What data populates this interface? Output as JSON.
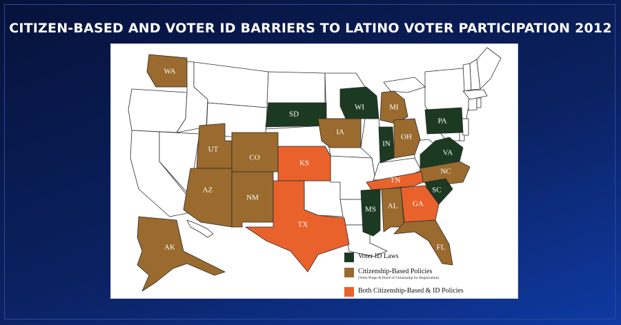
{
  "title": "CITIZEN-BASED AND VOTER ID BARRIERS TO LATINO VOTER PARTICIPATION 2012",
  "colors": {
    "voter_id": "#1c3a22",
    "citizenship": "#9a6a2e",
    "both": "#e9622c",
    "none": "#ffffff"
  },
  "legend": [
    {
      "key": "voter_id",
      "label": "Voter ID Laws",
      "sub": ""
    },
    {
      "key": "citizenship",
      "label": "Citizenship-Based Policies",
      "sub": "(Voter Purge & Proof of Citizenship for Registration)"
    },
    {
      "key": "both",
      "label": "Both Citizenship-Based & ID Policies",
      "sub": ""
    }
  ],
  "states": [
    {
      "abbr": "WA",
      "category": "citizenship"
    },
    {
      "abbr": "UT",
      "category": "citizenship"
    },
    {
      "abbr": "CO",
      "category": "citizenship"
    },
    {
      "abbr": "AZ",
      "category": "citizenship"
    },
    {
      "abbr": "NM",
      "category": "citizenship"
    },
    {
      "abbr": "AK",
      "category": "citizenship"
    },
    {
      "abbr": "IA",
      "category": "citizenship"
    },
    {
      "abbr": "MI",
      "category": "citizenship"
    },
    {
      "abbr": "OH",
      "category": "citizenship"
    },
    {
      "abbr": "NC",
      "category": "citizenship"
    },
    {
      "abbr": "AL",
      "category": "citizenship"
    },
    {
      "abbr": "FL",
      "category": "citizenship"
    },
    {
      "abbr": "SD",
      "category": "voter_id"
    },
    {
      "abbr": "WI",
      "category": "voter_id"
    },
    {
      "abbr": "IN",
      "category": "voter_id"
    },
    {
      "abbr": "PA",
      "category": "voter_id"
    },
    {
      "abbr": "VA",
      "category": "voter_id"
    },
    {
      "abbr": "SC",
      "category": "voter_id"
    },
    {
      "abbr": "MS",
      "category": "voter_id"
    },
    {
      "abbr": "KS",
      "category": "both"
    },
    {
      "abbr": "TX",
      "category": "both"
    },
    {
      "abbr": "TN",
      "category": "both"
    },
    {
      "abbr": "GA",
      "category": "both"
    }
  ]
}
